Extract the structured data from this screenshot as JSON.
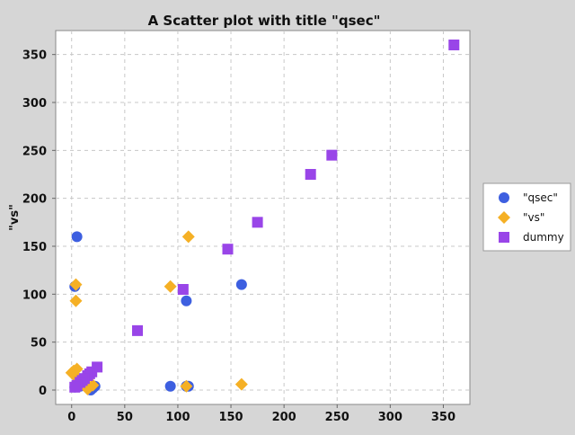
{
  "chart_data": {
    "type": "scatter",
    "title": "A Scatter plot with title \"qsec\"",
    "xlabel": "",
    "ylabel": "\"vs\"",
    "xlim": [
      -15,
      375
    ],
    "ylim": [
      -15,
      375
    ],
    "x_ticks": [
      0,
      50,
      100,
      150,
      200,
      250,
      300,
      350
    ],
    "y_ticks": [
      0,
      50,
      100,
      150,
      200,
      250,
      300,
      350
    ],
    "grid": true,
    "legend_position": "right",
    "series": [
      {
        "name": "\"qsec\"",
        "marker": "circle",
        "color": "#3d5fe0",
        "points": [
          {
            "x": 5,
            "y": 160
          },
          {
            "x": 3,
            "y": 108
          },
          {
            "x": 160,
            "y": 110
          },
          {
            "x": 108,
            "y": 93
          },
          {
            "x": 93,
            "y": 4
          },
          {
            "x": 108,
            "y": 4
          },
          {
            "x": 110,
            "y": 4
          },
          {
            "x": 18,
            "y": 0
          },
          {
            "x": 20,
            "y": 2
          },
          {
            "x": 22,
            "y": 4
          },
          {
            "x": 16,
            "y": 2
          },
          {
            "x": 3,
            "y": 3
          },
          {
            "x": 5,
            "y": 5
          },
          {
            "x": 8,
            "y": 4
          },
          {
            "x": 18,
            "y": 3
          }
        ]
      },
      {
        "name": "\"vs\"",
        "marker": "diamond",
        "color": "#f5b025",
        "points": [
          {
            "x": 110,
            "y": 160
          },
          {
            "x": 4,
            "y": 110
          },
          {
            "x": 93,
            "y": 108
          },
          {
            "x": 4,
            "y": 93
          },
          {
            "x": 160,
            "y": 6
          },
          {
            "x": 108,
            "y": 4
          },
          {
            "x": 0,
            "y": 18
          },
          {
            "x": 5,
            "y": 22
          },
          {
            "x": 2,
            "y": 20
          },
          {
            "x": 17,
            "y": 3
          },
          {
            "x": 20,
            "y": 5
          },
          {
            "x": 5,
            "y": 8
          },
          {
            "x": 8,
            "y": 10
          },
          {
            "x": 15,
            "y": 1
          },
          {
            "x": 3,
            "y": 15
          }
        ]
      },
      {
        "name": "dummy",
        "marker": "square",
        "color": "#9945e8",
        "points": [
          {
            "x": 360,
            "y": 360
          },
          {
            "x": 245,
            "y": 245
          },
          {
            "x": 225,
            "y": 225
          },
          {
            "x": 175,
            "y": 175
          },
          {
            "x": 147,
            "y": 147
          },
          {
            "x": 105,
            "y": 105
          },
          {
            "x": 62,
            "y": 62
          },
          {
            "x": 24,
            "y": 24
          },
          {
            "x": 19,
            "y": 19
          },
          {
            "x": 17,
            "y": 17
          },
          {
            "x": 15,
            "y": 15
          },
          {
            "x": 12,
            "y": 12
          },
          {
            "x": 10,
            "y": 10
          },
          {
            "x": 8,
            "y": 8
          },
          {
            "x": 5,
            "y": 5
          },
          {
            "x": 3,
            "y": 3
          }
        ]
      }
    ]
  }
}
